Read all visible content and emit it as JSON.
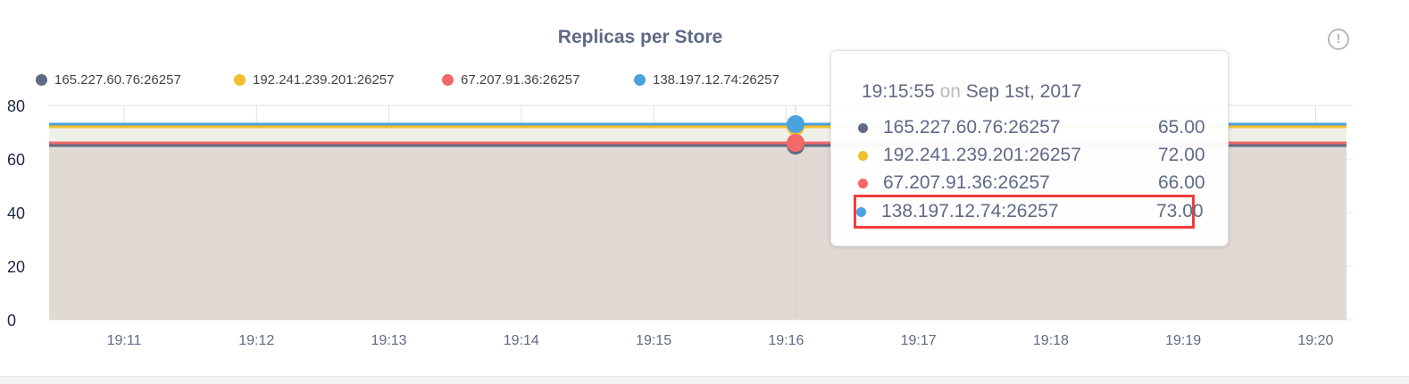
{
  "chart_data": {
    "type": "area",
    "title": "Replicas per Store",
    "xlabel": "",
    "ylabel": "",
    "ylim": [
      0,
      80
    ],
    "yticks": [
      "0",
      "20",
      "40",
      "60",
      "80"
    ],
    "xticks": [
      "19:11",
      "19:12",
      "19:13",
      "19:14",
      "19:15",
      "19:16",
      "19:17",
      "19:18",
      "19:19",
      "19:20"
    ],
    "grid": true,
    "legend": "top",
    "x": [
      "19:10:26",
      "19:20:14"
    ],
    "series": [
      {
        "name": "165.227.60.76:26257",
        "color": "#5f6a85",
        "values": [
          65,
          65
        ]
      },
      {
        "name": "192.241.239.201:26257",
        "color": "#f2be2c",
        "values": [
          72,
          72
        ]
      },
      {
        "name": "67.207.91.36:26257",
        "color": "#f16969",
        "values": [
          66,
          66
        ]
      },
      {
        "name": "138.197.12.74:26257",
        "color": "#4aa3df",
        "values": [
          73,
          73
        ]
      }
    ]
  },
  "info_icon": "!",
  "tooltip": {
    "time": "19:15:55",
    "on": "on",
    "date": "Sep 1st, 2017",
    "rows": [
      {
        "label": "165.227.60.76:26257",
        "value": "65.00"
      },
      {
        "label": "192.241.239.201:26257",
        "value": "72.00"
      },
      {
        "label": "67.207.91.36:26257",
        "value": "66.00"
      },
      {
        "label": "138.197.12.74:26257",
        "value": "73.00",
        "highlighted": true
      }
    ]
  }
}
